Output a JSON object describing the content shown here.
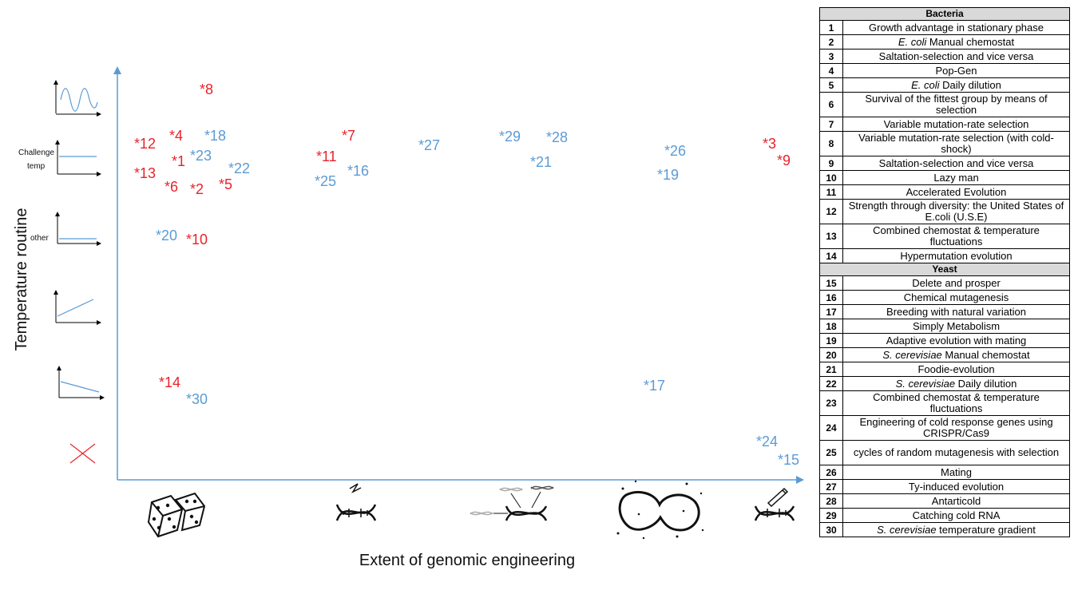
{
  "axes": {
    "y_title": "Temperature routine",
    "x_title": "Extent of genomic engineering",
    "y_icon_labels": {
      "challenge_line1": "Challenge",
      "challenge_line2": "temp",
      "other": "other"
    }
  },
  "colors": {
    "bacteria": "#e8232a",
    "yeast": "#5b9bd5",
    "axis": "#5b9bd5"
  },
  "x_icons": [
    "dice-icon",
    "mutagenized-dna-icon",
    "recombined-dna-icon",
    "mating-cells-icon",
    "edited-dna-icon"
  ],
  "y_icons": [
    "oscillating-temperature-icon",
    "challenge-temperature-icon",
    "other-temperature-icon",
    "increasing-temperature-icon",
    "decreasing-temperature-icon",
    "no-temperature-icon"
  ],
  "points": [
    {
      "label": "*8",
      "group": "bacteria",
      "x_category": 1,
      "y_category": 1
    },
    {
      "label": "*4",
      "group": "bacteria",
      "x_category": 1,
      "y_category": 2
    },
    {
      "label": "*18",
      "group": "yeast",
      "x_category": 1,
      "y_category": 2
    },
    {
      "label": "*12",
      "group": "bacteria",
      "x_category": 1,
      "y_category": 2
    },
    {
      "label": "*1",
      "group": "bacteria",
      "x_category": 1,
      "y_category": 2
    },
    {
      "label": "*23",
      "group": "yeast",
      "x_category": 1,
      "y_category": 2
    },
    {
      "label": "*22",
      "group": "yeast",
      "x_category": 1,
      "y_category": 2
    },
    {
      "label": "*13",
      "group": "bacteria",
      "x_category": 1,
      "y_category": 2
    },
    {
      "label": "*6",
      "group": "bacteria",
      "x_category": 1,
      "y_category": 2
    },
    {
      "label": "*2",
      "group": "bacteria",
      "x_category": 1,
      "y_category": 2
    },
    {
      "label": "*5",
      "group": "bacteria",
      "x_category": 1,
      "y_category": 2
    },
    {
      "label": "*7",
      "group": "bacteria",
      "x_category": 2,
      "y_category": 2
    },
    {
      "label": "*11",
      "group": "bacteria",
      "x_category": 2,
      "y_category": 2
    },
    {
      "label": "*16",
      "group": "yeast",
      "x_category": 2,
      "y_category": 2
    },
    {
      "label": "*25",
      "group": "yeast",
      "x_category": 2,
      "y_category": 2
    },
    {
      "label": "*27",
      "group": "yeast",
      "x_category": 3,
      "y_category": 2
    },
    {
      "label": "*29",
      "group": "yeast",
      "x_category": 3,
      "y_category": 2
    },
    {
      "label": "*28",
      "group": "yeast",
      "x_category": 3,
      "y_category": 2
    },
    {
      "label": "*21",
      "group": "yeast",
      "x_category": 3,
      "y_category": 2
    },
    {
      "label": "*26",
      "group": "yeast",
      "x_category": 4,
      "y_category": 2
    },
    {
      "label": "*19",
      "group": "yeast",
      "x_category": 4,
      "y_category": 2
    },
    {
      "label": "*3",
      "group": "bacteria",
      "x_category": 5,
      "y_category": 2
    },
    {
      "label": "*9",
      "group": "bacteria",
      "x_category": 5,
      "y_category": 2
    },
    {
      "label": "*20",
      "group": "yeast",
      "x_category": 1,
      "y_category": 3
    },
    {
      "label": "*10",
      "group": "bacteria",
      "x_category": 1,
      "y_category": 3
    },
    {
      "label": "*14",
      "group": "bacteria",
      "x_category": 1,
      "y_category": 5
    },
    {
      "label": "*30",
      "group": "yeast",
      "x_category": 1,
      "y_category": 5
    },
    {
      "label": "*17",
      "group": "yeast",
      "x_category": 4,
      "y_category": 5
    },
    {
      "label": "*24",
      "group": "yeast",
      "x_category": 5,
      "y_category": 6
    },
    {
      "label": "*15",
      "group": "yeast",
      "x_category": 5,
      "y_category": 6
    }
  ],
  "legend": {
    "bacteria_header": "Bacteria",
    "bacteria": [
      {
        "num": "1",
        "text": "Growth advantage in stationary phase"
      },
      {
        "num": "2",
        "italic": "E. coli",
        "text": " Manual chemostat"
      },
      {
        "num": "3",
        "text": "Saltation-selection and vice versa"
      },
      {
        "num": "4",
        "text": "Pop-Gen"
      },
      {
        "num": "5",
        "italic": "E. coli",
        "text": " Daily dilution"
      },
      {
        "num": "6",
        "text": "Survival of the fittest group by means of selection"
      },
      {
        "num": "7",
        "text": "Variable mutation-rate selection"
      },
      {
        "num": "8",
        "text": "Variable mutation-rate selection (with cold-shock)"
      },
      {
        "num": "9",
        "text": "Saltation-selection and vice versa"
      },
      {
        "num": "10",
        "text": "Lazy man"
      },
      {
        "num": "11",
        "text": "Accelerated Evolution"
      },
      {
        "num": "12",
        "text": "Strength through diversity: the United States of E.coli (U.S.E)"
      },
      {
        "num": "13",
        "text": "Combined chemostat & temperature fluctuations"
      },
      {
        "num": "14",
        "text": "Hypermutation evolution"
      }
    ],
    "yeast_header": "Yeast",
    "yeast": [
      {
        "num": "15",
        "text": "Delete and prosper"
      },
      {
        "num": "16",
        "text": "Chemical mutagenesis"
      },
      {
        "num": "17",
        "text": "Breeding with natural variation"
      },
      {
        "num": "18",
        "text": "Simply Metabolism"
      },
      {
        "num": "19",
        "text": "Adaptive evolution with mating"
      },
      {
        "num": "20",
        "italic": "S. cerevisiae",
        "text": " Manual chemostat"
      },
      {
        "num": "21",
        "text": "Foodie-evolution"
      },
      {
        "num": "22",
        "italic": "S. cerevisiae",
        "text": " Daily dilution"
      },
      {
        "num": "23",
        "text": "Combined chemostat & temperature fluctuations"
      },
      {
        "num": "24",
        "text": "Engineering of cold response genes using CRISPR/Cas9"
      },
      {
        "num": "25",
        "text": "cycles of random mutagenesis with selection"
      },
      {
        "num": "26",
        "text": "Mating"
      },
      {
        "num": "27",
        "text": "Ty-induced evolution"
      },
      {
        "num": "28",
        "text": "Antarticold"
      },
      {
        "num": "29",
        "text": "Catching cold  RNA"
      },
      {
        "num": "30",
        "italic": "S. cerevisiae",
        "text": " temperature gradient"
      }
    ]
  }
}
